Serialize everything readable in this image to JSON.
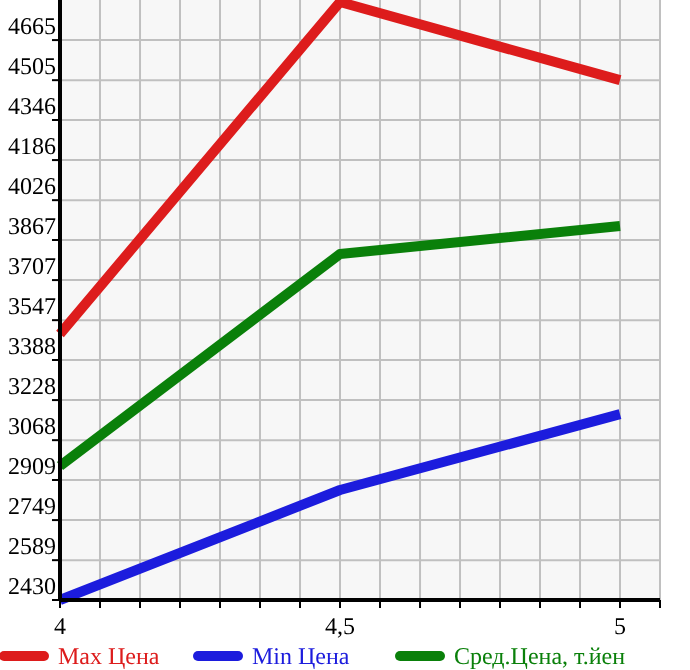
{
  "chart_data": {
    "type": "line",
    "x": [
      4,
      4.5,
      5
    ],
    "series": [
      {
        "name": "Max Цена",
        "color": "#dd1c1c",
        "values": [
          3492,
          4817,
          4505
        ]
      },
      {
        "name": "Min Цена",
        "color": "#1c1cdd",
        "values": [
          2430,
          2869,
          3172
        ]
      },
      {
        "name": "Сред.Цена, т.йен",
        "color": "#0a800a",
        "values": [
          2965,
          3811,
          3923
        ]
      }
    ],
    "xlim": [
      4,
      5.0714
    ],
    "xticks": [
      4,
      {
        "value": 4.0714,
        "label": null
      },
      {
        "value": 4.1429,
        "label": null
      },
      {
        "value": 4.2143,
        "label": null
      },
      {
        "value": 4.2857,
        "label": null
      },
      {
        "value": 4.3571,
        "label": null
      },
      {
        "value": 4.4286,
        "label": null
      },
      {
        "value": 4.5,
        "label": "4,5"
      },
      {
        "value": 4.5714,
        "label": null
      },
      {
        "value": 4.6429,
        "label": null
      },
      {
        "value": 4.7143,
        "label": null
      },
      {
        "value": 4.7857,
        "label": null
      },
      {
        "value": 4.8571,
        "label": null
      },
      {
        "value": 4.9286,
        "label": null
      },
      5,
      {
        "value": 5.0714,
        "label": null
      }
    ],
    "ylim": [
      2430,
      4825
    ],
    "yticks": [
      2430,
      2589,
      2749,
      2909,
      3068,
      3228,
      3388,
      3547,
      3707,
      3867,
      4026,
      4186,
      4346,
      4505,
      4665
    ],
    "grid": true,
    "legend": "bottom",
    "marker": "none",
    "line_style": "solid"
  }
}
